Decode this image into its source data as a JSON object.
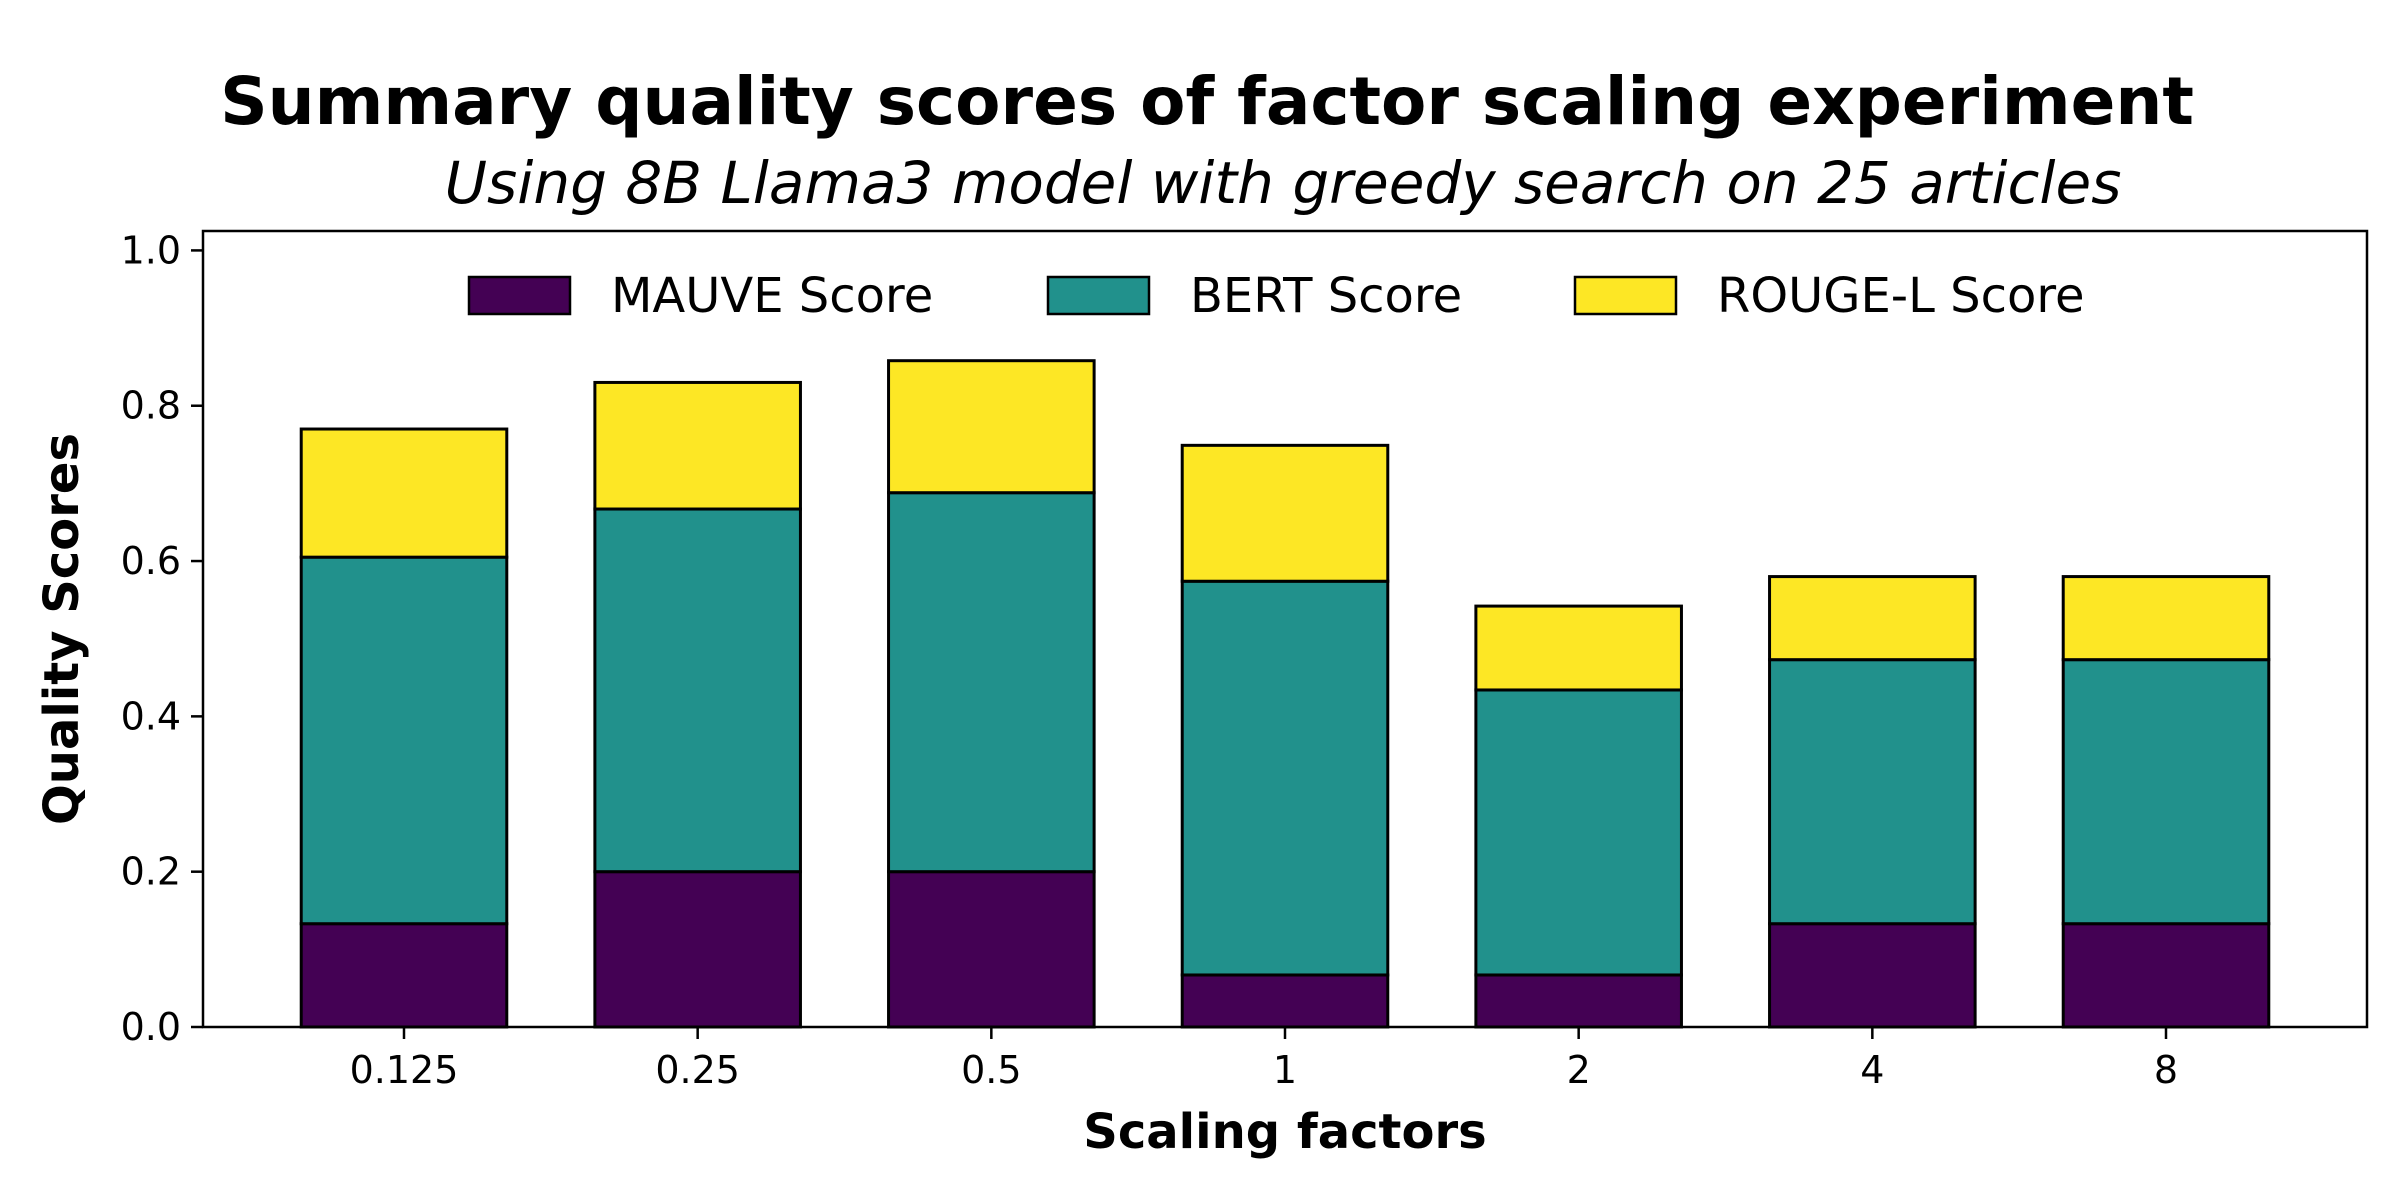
{
  "chart_data": {
    "type": "bar",
    "stacked": true,
    "title": "Summary quality scores of factor scaling experiment",
    "subtitle": "Using 8B Llama3 model with greedy search on 25 articles",
    "xlabel": "Scaling factors",
    "ylabel": "Quality Scores",
    "categories": [
      "0.125",
      "0.25",
      "0.5",
      "1",
      "2",
      "4",
      "8"
    ],
    "ylim": [
      0,
      1.025
    ],
    "yticks": [
      "0.0",
      "0.2",
      "0.4",
      "0.6",
      "0.8",
      "1.0"
    ],
    "grid": false,
    "legend_position": "top-center",
    "series": [
      {
        "name": "MAUVE Score",
        "color": "#440154",
        "values": [
          0.133,
          0.2,
          0.2,
          0.067,
          0.067,
          0.133,
          0.133
        ]
      },
      {
        "name": "BERT Score",
        "color": "#21918c",
        "values": [
          0.472,
          0.467,
          0.488,
          0.507,
          0.367,
          0.34,
          0.34
        ]
      },
      {
        "name": "ROUGE-L Score",
        "color": "#fde725",
        "values": [
          0.165,
          0.163,
          0.17,
          0.175,
          0.108,
          0.107,
          0.107
        ]
      }
    ]
  }
}
